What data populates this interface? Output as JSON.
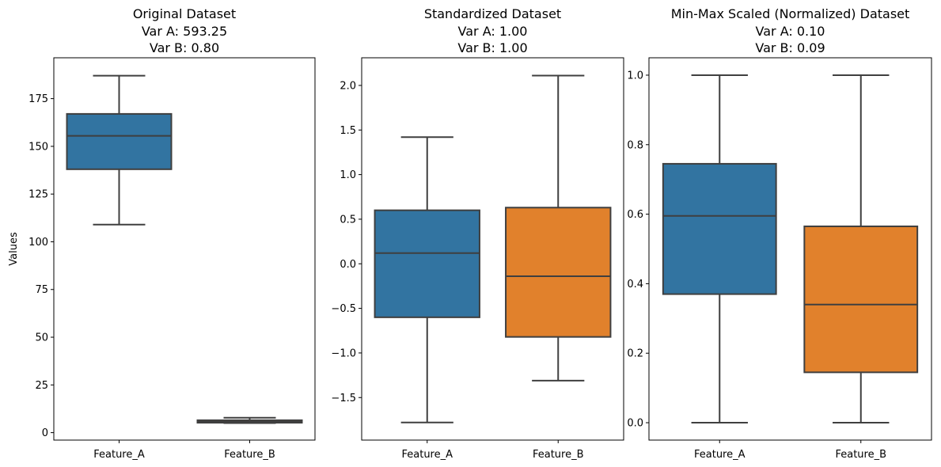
{
  "chart_data": [
    {
      "type": "box",
      "title_lines": [
        "Original Dataset",
        "Var A: 593.25",
        "Var B: 0.80"
      ],
      "ylabel": "Values",
      "xlabel": "",
      "categories": [
        "Feature_A",
        "Feature_B"
      ],
      "ylim": [
        -3.9,
        196.4
      ],
      "yticks": [
        0,
        25,
        50,
        75,
        100,
        125,
        150,
        175
      ],
      "ytick_labels": [
        "0",
        "25",
        "50",
        "75",
        "100",
        "125",
        "150",
        "175"
      ],
      "boxes": [
        {
          "name": "Feature_A",
          "color": "#3274a1",
          "whislo": 109,
          "q1": 138,
          "med": 155.5,
          "q3": 167,
          "whishi": 187
        },
        {
          "name": "Feature_B",
          "color": "#e1812c",
          "whislo": 5.0,
          "q1": 5.2,
          "med": 5.8,
          "q3": 6.5,
          "whishi": 7.8
        }
      ]
    },
    {
      "type": "box",
      "title_lines": [
        "Standardized Dataset",
        "Var A: 1.00",
        "Var B: 1.00"
      ],
      "ylabel": "",
      "xlabel": "",
      "categories": [
        "Feature_A",
        "Feature_B"
      ],
      "ylim": [
        -1.977,
        2.31
      ],
      "yticks": [
        -1.5,
        -1.0,
        -0.5,
        0.0,
        0.5,
        1.0,
        1.5,
        2.0
      ],
      "ytick_labels": [
        "−1.5",
        "−1.0",
        "−0.5",
        "0.0",
        "0.5",
        "1.0",
        "1.5",
        "2.0"
      ],
      "boxes": [
        {
          "name": "Feature_A",
          "color": "#3274a1",
          "whislo": -1.78,
          "q1": -0.6,
          "med": 0.12,
          "q3": 0.6,
          "whishi": 1.42
        },
        {
          "name": "Feature_B",
          "color": "#e1812c",
          "whislo": -1.31,
          "q1": -0.82,
          "med": -0.14,
          "q3": 0.63,
          "whishi": 2.11
        }
      ]
    },
    {
      "type": "box",
      "title_lines": [
        "Min-Max Scaled (Normalized) Dataset",
        "Var A: 0.10",
        "Var B: 0.09"
      ],
      "ylabel": "",
      "xlabel": "",
      "categories": [
        "Feature_A",
        "Feature_B"
      ],
      "ylim": [
        -0.05,
        1.05
      ],
      "yticks": [
        0.0,
        0.2,
        0.4,
        0.6,
        0.8,
        1.0
      ],
      "ytick_labels": [
        "0.0",
        "0.2",
        "0.4",
        "0.6",
        "0.8",
        "1.0"
      ],
      "boxes": [
        {
          "name": "Feature_A",
          "color": "#3274a1",
          "whislo": 0.0,
          "q1": 0.37,
          "med": 0.595,
          "q3": 0.745,
          "whishi": 1.0
        },
        {
          "name": "Feature_B",
          "color": "#e1812c",
          "whislo": 0.0,
          "q1": 0.145,
          "med": 0.34,
          "q3": 0.565,
          "whishi": 1.0
        }
      ]
    }
  ]
}
